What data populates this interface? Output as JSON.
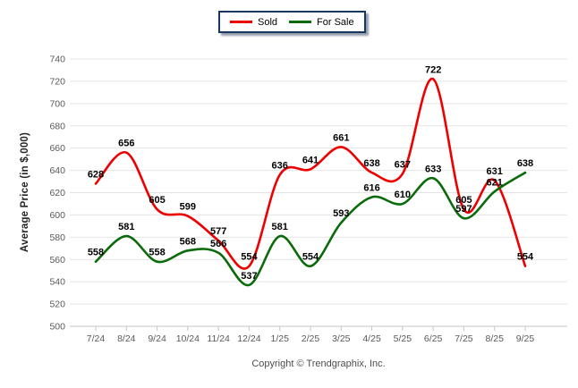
{
  "chart_data": {
    "type": "line",
    "title": "",
    "categories": [
      "7/24",
      "8/24",
      "9/24",
      "10/24",
      "11/24",
      "12/24",
      "1/25",
      "2/25",
      "3/25",
      "4/25",
      "5/25",
      "6/25",
      "7/25",
      "8/25",
      "9/25"
    ],
    "series": [
      {
        "name": "Sold",
        "color": "#ee0000",
        "values": [
          628,
          656,
          605,
          599,
          577,
          554,
          636,
          641,
          661,
          638,
          637,
          722,
          605,
          631,
          554
        ]
      },
      {
        "name": "For Sale",
        "color": "#0a6b0a",
        "values": [
          558,
          581,
          558,
          568,
          566,
          537,
          581,
          554,
          593,
          616,
          610,
          633,
          597,
          621,
          638
        ]
      }
    ],
    "xlabel": "",
    "ylabel": "Average Price (in $,000)",
    "ylim": [
      500,
      740
    ],
    "ytick_step": 20,
    "grid": true,
    "legend_position": "top-center",
    "data_labels": true
  },
  "colors": {
    "grid_line": "#e4e4e4",
    "axis_line": "#c6c6c6",
    "tick_label": "#595959",
    "data_label": "#000000",
    "legend_border": "#17375e"
  },
  "footer": {
    "copyright": "Copyright © Trendgraphix, Inc."
  }
}
